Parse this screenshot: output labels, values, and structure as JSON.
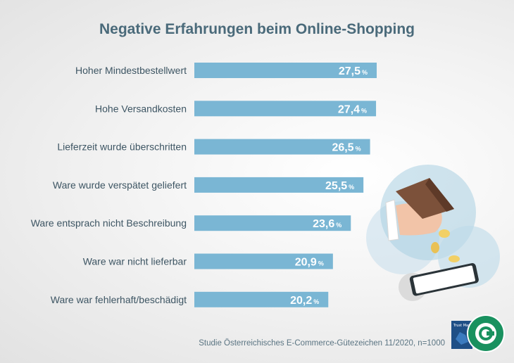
{
  "title": "Negative Erfahrungen beim Online-Shopping",
  "footer": "Studie Österreichisches E-Commerce-Gütezeichen 11/2020, n=1000",
  "colors": {
    "bar": "#7ab6d4",
    "label": "#3d5563",
    "value": "#ffffff",
    "title": "#4a6a7a"
  },
  "chart_data": {
    "type": "bar",
    "orientation": "horizontal",
    "title": "Negative Erfahrungen beim Online-Shopping",
    "categories": [
      "Hoher Mindestbestellwert",
      "Hohe Versandkosten",
      "Lieferzeit wurde überschritten",
      "Ware wurde verspätet geliefert",
      "Ware entsprach nicht Beschreibung",
      "Ware war nicht lieferbar",
      "Ware war fehlerhaft/beschädigt"
    ],
    "values": [
      27.5,
      27.4,
      26.5,
      25.5,
      23.6,
      20.9,
      20.2
    ],
    "value_labels": [
      "27,5",
      "27,4",
      "26,5",
      "25,5",
      "23,6",
      "20,9",
      "20,2"
    ],
    "unit": "%"
  }
}
